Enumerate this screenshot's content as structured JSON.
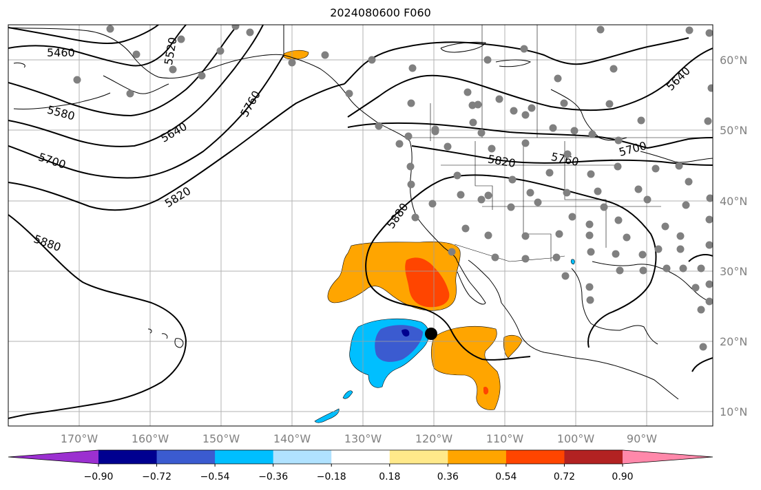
{
  "title": "2024080600 F060",
  "colors": {
    "land_outline": "#000000",
    "grid": "#a0a0a0",
    "contour": "#000000",
    "station_dot": "#808080",
    "center_dot": "#000000"
  },
  "axes": {
    "lon_ticks": [
      "170°W",
      "160°W",
      "150°W",
      "140°W",
      "130°W",
      "120°W",
      "110°W",
      "100°W",
      "90°W"
    ],
    "lat_ticks": [
      "60°N",
      "50°N",
      "40°N",
      "30°N",
      "20°N",
      "10°N"
    ]
  },
  "contour_labels": [
    "5460",
    "5520",
    "5580",
    "5640",
    "5700",
    "5760",
    "5820",
    "5880",
    "5880",
    "5640",
    "5700",
    "5760",
    "5820",
    "5640",
    "5880"
  ],
  "colorbar": {
    "colors": [
      "#9b30d0",
      "#000090",
      "#3b5bd0",
      "#00bfff",
      "#b0e2ff",
      "#ffffff",
      "#ffe98a",
      "#ffa500",
      "#ff4500",
      "#b22222",
      "#ff88aa"
    ],
    "labels": [
      "−0.90",
      "−0.72",
      "−0.54",
      "−0.36",
      "−0.18",
      "0.18",
      "0.36",
      "0.54",
      "0.72",
      "0.90"
    ]
  }
}
